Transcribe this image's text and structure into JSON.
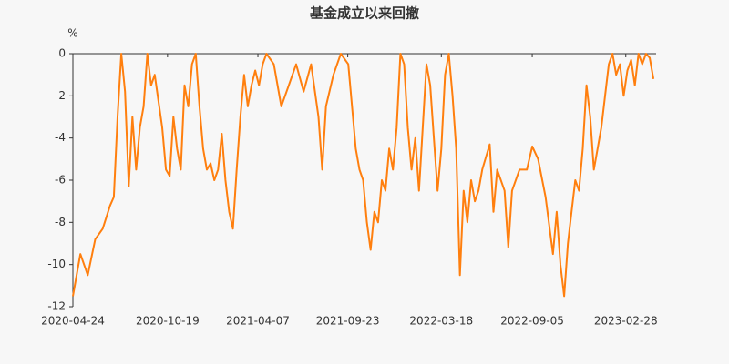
{
  "chart_data": {
    "type": "line",
    "title": "基金成立以来回撤",
    "y_unit": "%",
    "x": [
      "2020-04-24",
      "2020-05-08",
      "2020-05-22",
      "2020-06-05",
      "2020-06-19",
      "2020-07-03",
      "2020-07-10",
      "2020-07-17",
      "2020-07-24",
      "2020-07-31",
      "2020-08-07",
      "2020-08-14",
      "2020-08-21",
      "2020-08-28",
      "2020-09-04",
      "2020-09-11",
      "2020-09-18",
      "2020-09-25",
      "2020-10-09",
      "2020-10-16",
      "2020-10-23",
      "2020-10-30",
      "2020-11-06",
      "2020-11-13",
      "2020-11-20",
      "2020-11-27",
      "2020-12-04",
      "2020-12-11",
      "2020-12-18",
      "2020-12-25",
      "2021-01-01",
      "2021-01-08",
      "2021-01-15",
      "2021-01-22",
      "2021-01-29",
      "2021-02-05",
      "2021-02-12",
      "2021-02-19",
      "2021-02-26",
      "2021-03-05",
      "2021-03-12",
      "2021-03-19",
      "2021-03-26",
      "2021-04-02",
      "2021-04-09",
      "2021-04-16",
      "2021-04-23",
      "2021-05-07",
      "2021-05-21",
      "2021-06-04",
      "2021-06-18",
      "2021-07-02",
      "2021-07-16",
      "2021-07-30",
      "2021-08-06",
      "2021-08-13",
      "2021-08-27",
      "2021-09-10",
      "2021-09-24",
      "2021-10-08",
      "2021-10-15",
      "2021-10-22",
      "2021-10-29",
      "2021-11-05",
      "2021-11-12",
      "2021-11-19",
      "2021-11-26",
      "2021-12-03",
      "2021-12-10",
      "2021-12-17",
      "2021-12-24",
      "2021-12-31",
      "2022-01-07",
      "2022-01-14",
      "2022-01-21",
      "2022-01-28",
      "2022-02-04",
      "2022-02-11",
      "2022-02-18",
      "2022-02-25",
      "2022-03-04",
      "2022-03-11",
      "2022-03-18",
      "2022-03-25",
      "2022-04-01",
      "2022-04-08",
      "2022-04-15",
      "2022-04-22",
      "2022-04-29",
      "2022-05-06",
      "2022-05-13",
      "2022-05-20",
      "2022-05-27",
      "2022-06-03",
      "2022-06-17",
      "2022-06-24",
      "2022-07-01",
      "2022-07-15",
      "2022-07-22",
      "2022-07-29",
      "2022-08-12",
      "2022-08-26",
      "2022-09-05",
      "2022-09-16",
      "2022-09-30",
      "2022-10-14",
      "2022-10-21",
      "2022-10-28",
      "2022-11-04",
      "2022-11-11",
      "2022-11-18",
      "2022-11-25",
      "2022-12-02",
      "2022-12-09",
      "2022-12-16",
      "2022-12-23",
      "2022-12-30",
      "2023-01-06",
      "2023-01-13",
      "2023-01-20",
      "2023-01-27",
      "2023-02-03",
      "2023-02-10",
      "2023-02-17",
      "2023-02-24",
      "2023-03-03",
      "2023-03-10",
      "2023-03-17",
      "2023-03-24",
      "2023-03-31",
      "2023-04-07",
      "2023-04-14",
      "2023-04-21"
    ],
    "series": [
      {
        "name": "回撤",
        "color": "#ff7f0e",
        "values": [
          -11.5,
          -9.5,
          -10.5,
          -8.8,
          -8.3,
          -7.2,
          -6.8,
          -3,
          0,
          -1.8,
          -6.3,
          -3,
          -5.5,
          -3.5,
          -2.5,
          0,
          -1.5,
          -1.0,
          -3.5,
          -5.5,
          -5.8,
          -3,
          -4.5,
          -5.5,
          -1.5,
          -2.5,
          -0.5,
          0,
          -2.5,
          -4.5,
          -5.5,
          -5.2,
          -6.0,
          -5.5,
          -3.8,
          -6.0,
          -7.5,
          -8.3,
          -5.5,
          -3,
          -1,
          -2.5,
          -1.5,
          -0.8,
          -1.5,
          -0.5,
          0,
          -0.5,
          -2.5,
          -1.5,
          -0.5,
          -1.8,
          -0.5,
          -3,
          -5.5,
          -2.5,
          -1,
          0,
          -0.5,
          -4.5,
          -5.5,
          -6,
          -8,
          -9.3,
          -7.5,
          -8,
          -6,
          -6.5,
          -4.5,
          -5.5,
          -3.5,
          0,
          -0.5,
          -3.5,
          -5.5,
          -4.0,
          -6.5,
          -3.5,
          -0.5,
          -1.5,
          -4,
          -6.5,
          -4.5,
          -1.0,
          0,
          -2,
          -4.5,
          -10.5,
          -6.5,
          -8,
          -6,
          -7,
          -6.5,
          -5.5,
          -4.3,
          -7.5,
          -5.5,
          -6.5,
          -9.2,
          -6.5,
          -5.5,
          -5.5,
          -4.4,
          -5,
          -6.8,
          -9.5,
          -7.5,
          -10,
          -11.5,
          -9,
          -7.5,
          -6.0,
          -6.5,
          -4.5,
          -1.5,
          -3,
          -5.5,
          -4.5,
          -3.5,
          -2.0,
          -0.5,
          0,
          -1,
          -0.5,
          -2,
          -0.8,
          -0.3,
          -1.5,
          0,
          -0.5,
          0,
          -0.2,
          -1.2
        ]
      }
    ],
    "xlim": [
      "2020-04-24",
      "2023-04-26"
    ],
    "xticks": [
      "2020-04-24",
      "2020-10-19",
      "2021-04-07",
      "2021-09-23",
      "2022-03-18",
      "2022-09-05",
      "2023-02-28"
    ],
    "ylim": [
      -12,
      0
    ],
    "yticks": [
      -12,
      -10,
      -8,
      -6,
      -4,
      -2,
      0
    ],
    "grid": false
  }
}
